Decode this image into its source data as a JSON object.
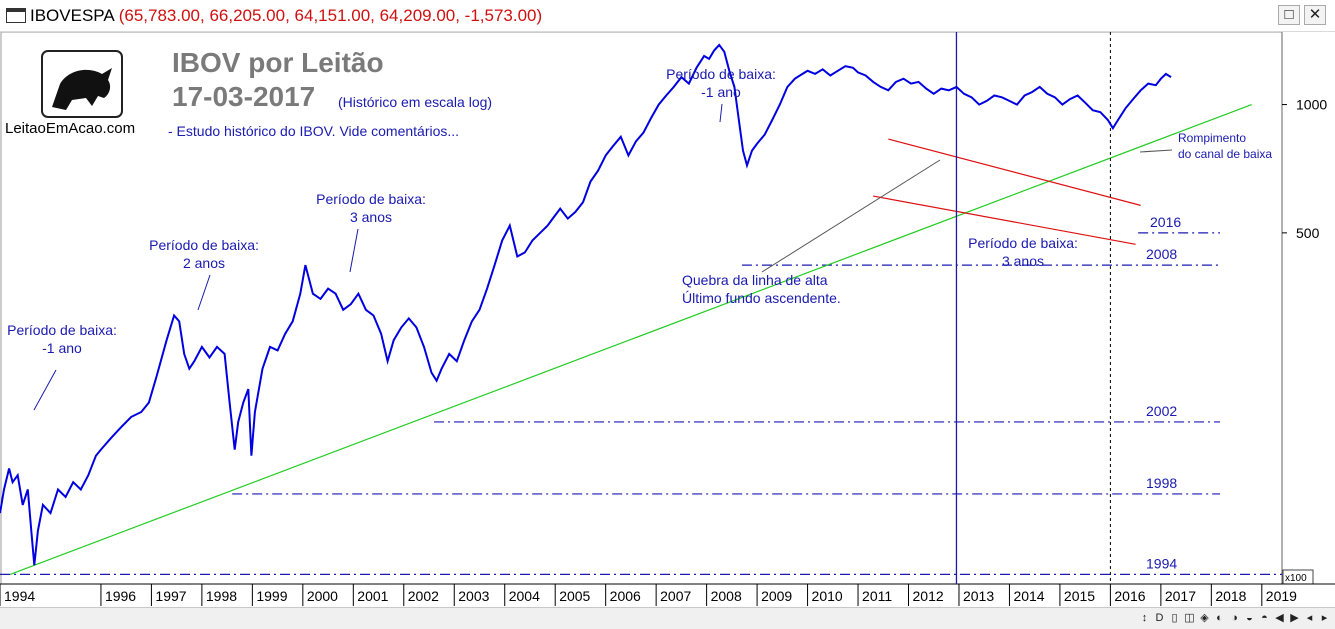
{
  "window": {
    "name": "IBOVESPA",
    "values": "(65,783.00, 66,205.00, 64,151.00, 64,209.00, -1,573.00)",
    "restore_label": "□",
    "close_label": "✕"
  },
  "header": {
    "logo_text": "LeitaoEmAcao.com",
    "title": "IBOV por Leitão",
    "date": "17-03-2017",
    "subtitle": "(Histórico em escala log)",
    "note": "- Estudo histórico do IBOV. Vide comentários..."
  },
  "nav": {
    "buttons": [
      "↕",
      "D",
      "▯",
      "◫",
      "◈",
      "◐",
      "◑",
      "◒",
      "◓",
      "◀",
      "▶",
      "◂",
      "▸"
    ]
  },
  "chart_data": {
    "type": "line",
    "y_scale": "log",
    "y_tick_labels": [
      "1000",
      "500"
    ],
    "y_ticks": [
      1000,
      500
    ],
    "y_unit": "x100",
    "x_tick_labels": [
      "1994",
      "1996",
      "1997",
      "1998",
      "1999",
      "2000",
      "2001",
      "2002",
      "2003",
      "2004",
      "2005",
      "2006",
      "2007",
      "2008",
      "2009",
      "2010",
      "2011",
      "2012",
      "2013",
      "2014",
      "2015",
      "2016",
      "2017",
      "2018",
      "2019"
    ],
    "x_ticks": [
      1994.0,
      1996.0,
      1997.0,
      1998.0,
      1999.0,
      2000.0,
      2001.0,
      2002.0,
      2003.0,
      2004.0,
      2005.0,
      2006.0,
      2007.0,
      2008.0,
      2009.0,
      2010.0,
      2011.0,
      2012.0,
      2013.0,
      2014.0,
      2015.0,
      2016.0,
      2017.0,
      2018.0,
      2019.0
    ],
    "xlim": [
      1994.0,
      2019.4
    ],
    "ylim": [
      75,
      1480
    ],
    "series": [
      {
        "color": "#0000e0",
        "points": [
          [
            1994.0,
            110
          ],
          [
            1994.08,
            125
          ],
          [
            1994.18,
            140
          ],
          [
            1994.25,
            130
          ],
          [
            1994.35,
            135
          ],
          [
            1994.45,
            115
          ],
          [
            1994.55,
            125
          ],
          [
            1994.62,
            100
          ],
          [
            1994.68,
            83
          ],
          [
            1994.75,
            100
          ],
          [
            1994.85,
            115
          ],
          [
            1995.0,
            110
          ],
          [
            1995.15,
            125
          ],
          [
            1995.3,
            120
          ],
          [
            1995.45,
            130
          ],
          [
            1995.6,
            125
          ],
          [
            1995.75,
            135
          ],
          [
            1995.9,
            150
          ],
          [
            1996.0,
            155
          ],
          [
            1996.2,
            165
          ],
          [
            1996.4,
            175
          ],
          [
            1996.6,
            185
          ],
          [
            1996.8,
            190
          ],
          [
            1996.95,
            200
          ],
          [
            1997.1,
            230
          ],
          [
            1997.3,
            280
          ],
          [
            1997.45,
            320
          ],
          [
            1997.55,
            310
          ],
          [
            1997.65,
            260
          ],
          [
            1997.75,
            240
          ],
          [
            1997.85,
            250
          ],
          [
            1998.0,
            270
          ],
          [
            1998.15,
            255
          ],
          [
            1998.3,
            270
          ],
          [
            1998.45,
            260
          ],
          [
            1998.55,
            200
          ],
          [
            1998.65,
            155
          ],
          [
            1998.72,
            180
          ],
          [
            1998.82,
            200
          ],
          [
            1998.92,
            215
          ],
          [
            1998.98,
            150
          ],
          [
            1999.05,
            190
          ],
          [
            1999.2,
            240
          ],
          [
            1999.35,
            270
          ],
          [
            1999.5,
            265
          ],
          [
            1999.65,
            290
          ],
          [
            1999.8,
            310
          ],
          [
            1999.95,
            360
          ],
          [
            2000.05,
            420
          ],
          [
            2000.2,
            360
          ],
          [
            2000.35,
            350
          ],
          [
            2000.5,
            370
          ],
          [
            2000.65,
            360
          ],
          [
            2000.8,
            330
          ],
          [
            2000.95,
            340
          ],
          [
            2001.1,
            360
          ],
          [
            2001.25,
            330
          ],
          [
            2001.4,
            320
          ],
          [
            2001.55,
            290
          ],
          [
            2001.68,
            250
          ],
          [
            2001.8,
            280
          ],
          [
            2001.95,
            300
          ],
          [
            2002.1,
            315
          ],
          [
            2002.25,
            300
          ],
          [
            2002.4,
            270
          ],
          [
            2002.55,
            235
          ],
          [
            2002.65,
            225
          ],
          [
            2002.75,
            240
          ],
          [
            2002.9,
            260
          ],
          [
            2003.05,
            250
          ],
          [
            2003.2,
            280
          ],
          [
            2003.35,
            310
          ],
          [
            2003.5,
            330
          ],
          [
            2003.65,
            370
          ],
          [
            2003.8,
            420
          ],
          [
            2003.95,
            480
          ],
          [
            2004.1,
            520
          ],
          [
            2004.25,
            440
          ],
          [
            2004.4,
            450
          ],
          [
            2004.55,
            480
          ],
          [
            2004.7,
            500
          ],
          [
            2004.85,
            520
          ],
          [
            2004.95,
            540
          ],
          [
            2005.1,
            570
          ],
          [
            2005.25,
            540
          ],
          [
            2005.4,
            560
          ],
          [
            2005.55,
            590
          ],
          [
            2005.7,
            660
          ],
          [
            2005.85,
            700
          ],
          [
            2006.0,
            760
          ],
          [
            2006.15,
            800
          ],
          [
            2006.3,
            840
          ],
          [
            2006.45,
            760
          ],
          [
            2006.6,
            820
          ],
          [
            2006.75,
            860
          ],
          [
            2006.9,
            930
          ],
          [
            2007.05,
            1000
          ],
          [
            2007.2,
            1050
          ],
          [
            2007.35,
            1100
          ],
          [
            2007.5,
            1160
          ],
          [
            2007.65,
            1120
          ],
          [
            2007.8,
            1220
          ],
          [
            2007.95,
            1300
          ],
          [
            2008.05,
            1280
          ],
          [
            2008.15,
            1340
          ],
          [
            2008.25,
            1380
          ],
          [
            2008.35,
            1330
          ],
          [
            2008.45,
            1200
          ],
          [
            2008.55,
            1100
          ],
          [
            2008.65,
            900
          ],
          [
            2008.72,
            780
          ],
          [
            2008.8,
            720
          ],
          [
            2008.9,
            780
          ],
          [
            2009.0,
            810
          ],
          [
            2009.15,
            850
          ],
          [
            2009.3,
            920
          ],
          [
            2009.45,
            1000
          ],
          [
            2009.6,
            1100
          ],
          [
            2009.75,
            1150
          ],
          [
            2009.9,
            1180
          ],
          [
            2010.0,
            1200
          ],
          [
            2010.15,
            1180
          ],
          [
            2010.3,
            1210
          ],
          [
            2010.45,
            1170
          ],
          [
            2010.6,
            1200
          ],
          [
            2010.75,
            1230
          ],
          [
            2010.9,
            1220
          ],
          [
            2011.0,
            1190
          ],
          [
            2011.15,
            1170
          ],
          [
            2011.3,
            1130
          ],
          [
            2011.45,
            1100
          ],
          [
            2011.6,
            1080
          ],
          [
            2011.75,
            1130
          ],
          [
            2011.9,
            1150
          ],
          [
            2012.05,
            1120
          ],
          [
            2012.2,
            1130
          ],
          [
            2012.35,
            1090
          ],
          [
            2012.5,
            1060
          ],
          [
            2012.65,
            1090
          ],
          [
            2012.8,
            1080
          ],
          [
            2012.95,
            1100
          ],
          [
            2013.1,
            1060
          ],
          [
            2013.25,
            1040
          ],
          [
            2013.4,
            1000
          ],
          [
            2013.55,
            1020
          ],
          [
            2013.7,
            1050
          ],
          [
            2013.85,
            1040
          ],
          [
            2014.0,
            1020
          ],
          [
            2014.15,
            1000
          ],
          [
            2014.3,
            1050
          ],
          [
            2014.45,
            1070
          ],
          [
            2014.6,
            1100
          ],
          [
            2014.75,
            1060
          ],
          [
            2014.9,
            1040
          ],
          [
            2015.05,
            1000
          ],
          [
            2015.2,
            1030
          ],
          [
            2015.35,
            1050
          ],
          [
            2015.5,
            1010
          ],
          [
            2015.65,
            970
          ],
          [
            2015.8,
            960
          ],
          [
            2015.95,
            920
          ],
          [
            2016.05,
            880
          ],
          [
            2016.15,
            920
          ],
          [
            2016.3,
            980
          ],
          [
            2016.45,
            1030
          ],
          [
            2016.6,
            1080
          ],
          [
            2016.75,
            1120
          ],
          [
            2016.9,
            1110
          ],
          [
            2017.0,
            1150
          ],
          [
            2017.1,
            1180
          ],
          [
            2017.2,
            1160
          ]
        ]
      }
    ],
    "annotations": [
      {
        "text_lines": [
          "Período de baixa:",
          "-1 ano"
        ]
      },
      {
        "text_lines": [
          "Período de baixa:",
          "2 anos"
        ]
      },
      {
        "text_lines": [
          "Período de baixa:",
          "3 anos"
        ]
      },
      {
        "text_lines": [
          "Período de baixa:",
          "-1 ano"
        ]
      },
      {
        "text_lines": [
          "Período de baixa:",
          "3 anos"
        ]
      },
      {
        "text_lines": [
          "Quebra da linha de alta",
          "Último fundo ascendente."
        ]
      },
      {
        "text_lines": [
          "Rompimento",
          "do canal de baixa"
        ]
      }
    ],
    "support_levels": [
      {
        "label": "2016"
      },
      {
        "label": "2008"
      },
      {
        "label": "2002"
      },
      {
        "label": "1998"
      },
      {
        "label": "1994"
      }
    ]
  }
}
